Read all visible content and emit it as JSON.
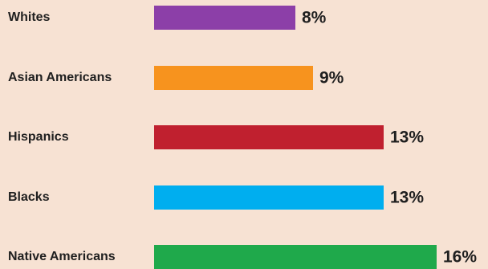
{
  "chart_data": {
    "type": "bar",
    "orientation": "horizontal",
    "categories": [
      "Whites",
      "Asian Americans",
      "Hispanics",
      "Blacks",
      "Native Americans"
    ],
    "values": [
      8,
      9,
      13,
      13,
      16
    ],
    "value_labels": [
      "8%",
      "9%",
      "13%",
      "13%",
      "16%"
    ],
    "colors": [
      "#8c3fa8",
      "#f7931e",
      "#c0202f",
      "#00aeef",
      "#1fa94b"
    ],
    "unit": "%",
    "title": "",
    "xlabel": "",
    "ylabel": "",
    "grid": false,
    "legend": "none"
  }
}
